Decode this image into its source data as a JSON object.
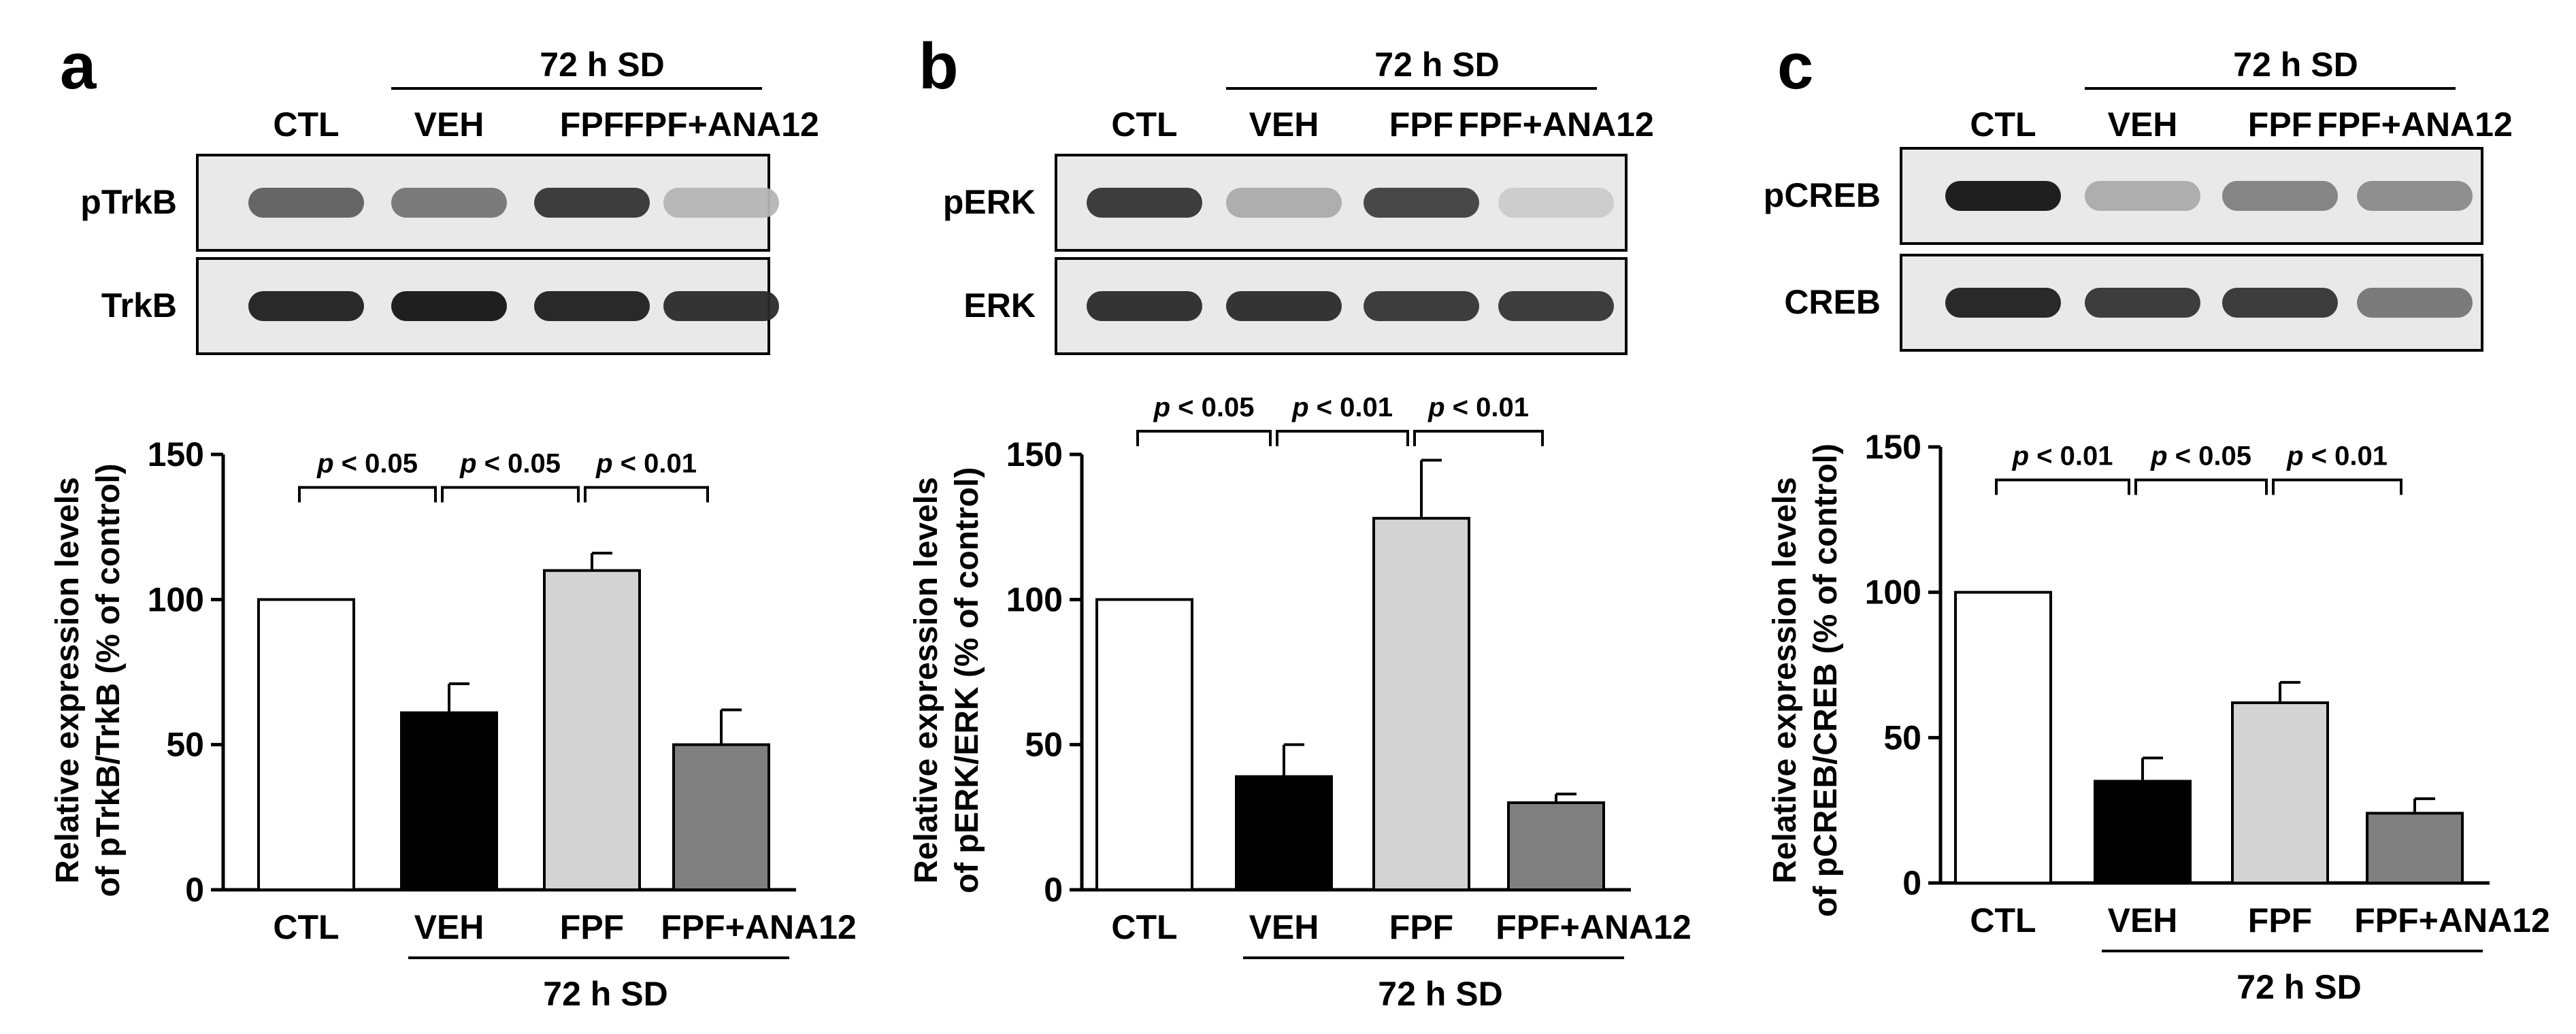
{
  "panels": [
    {
      "letter": "a",
      "group_label": "72 h SD",
      "lanes": [
        "CTL",
        "VEH",
        "FPF",
        "FPF+ANA12"
      ],
      "blot_labels": [
        "pTrkB",
        "TrkB"
      ],
      "blots": [
        {
          "label": "pTrkB",
          "intensity": [
            0.65,
            0.55,
            0.85,
            0.25
          ]
        },
        {
          "label": "TrkB",
          "intensity": [
            0.95,
            1.0,
            0.95,
            0.9
          ]
        }
      ],
      "chart_data": {
        "type": "bar",
        "categories": [
          "CTL",
          "VEH",
          "FPF",
          "FPF+ANA12"
        ],
        "values": [
          100,
          61,
          110,
          50
        ],
        "errors": [
          0,
          10,
          6,
          12
        ],
        "colors": [
          "#ffffff",
          "#000000",
          "#d3d3d3",
          "#808080"
        ],
        "ylabel_line1": "Relative expression levels",
        "ylabel_line2": "of pTrkB/TrkB (% of control)",
        "ylim": [
          0,
          150
        ],
        "yticks": [
          "0",
          "50",
          "100",
          "150"
        ],
        "xgroup_label": "72 h SD",
        "significance": [
          "p < 0.05",
          "p < 0.05",
          "p < 0.01"
        ]
      }
    },
    {
      "letter": "b",
      "group_label": "72 h SD",
      "lanes": [
        "CTL",
        "VEH",
        "FPF",
        "FPF+ANA12"
      ],
      "blot_labels": [
        "pERK",
        "ERK"
      ],
      "blots": [
        {
          "label": "pERK",
          "intensity": [
            0.85,
            0.3,
            0.8,
            0.15
          ]
        },
        {
          "label": "ERK",
          "intensity": [
            0.9,
            0.9,
            0.85,
            0.85
          ]
        }
      ],
      "chart_data": {
        "type": "bar",
        "categories": [
          "CTL",
          "VEH",
          "FPF",
          "FPF+ANA12"
        ],
        "values": [
          100,
          39,
          128,
          30
        ],
        "errors": [
          0,
          11,
          20,
          3
        ],
        "colors": [
          "#ffffff",
          "#000000",
          "#d3d3d3",
          "#808080"
        ],
        "ylabel_line1": "Relative expression levels",
        "ylabel_line2": "of pERK/ERK (% of control)",
        "ylim": [
          0,
          150
        ],
        "yticks": [
          "0",
          "50",
          "100",
          "150"
        ],
        "xgroup_label": "72 h SD",
        "significance": [
          "p < 0.05",
          "p < 0.01",
          "p < 0.01"
        ]
      }
    },
    {
      "letter": "c",
      "group_label": "72 h SD",
      "lanes": [
        "CTL",
        "VEH",
        "FPF",
        "FPF+ANA12"
      ],
      "blot_labels": [
        "pCREB",
        "CREB"
      ],
      "blots": [
        {
          "label": "pCREB",
          "intensity": [
            1.0,
            0.3,
            0.5,
            0.45
          ]
        },
        {
          "label": "CREB",
          "intensity": [
            0.95,
            0.85,
            0.85,
            0.55
          ]
        }
      ],
      "chart_data": {
        "type": "bar",
        "categories": [
          "CTL",
          "VEH",
          "FPF",
          "FPF+ANA12"
        ],
        "values": [
          100,
          35,
          62,
          24
        ],
        "errors": [
          0,
          8,
          7,
          5
        ],
        "colors": [
          "#ffffff",
          "#000000",
          "#d3d3d3",
          "#808080"
        ],
        "ylabel_line1": "Relative expression levels",
        "ylabel_line2": "of pCREB/CREB (% of control)",
        "ylim": [
          0,
          150
        ],
        "yticks": [
          "0",
          "50",
          "100",
          "150"
        ],
        "xgroup_label": "72 h SD",
        "significance": [
          "p < 0.01",
          "p < 0.05",
          "p < 0.01"
        ]
      }
    }
  ]
}
